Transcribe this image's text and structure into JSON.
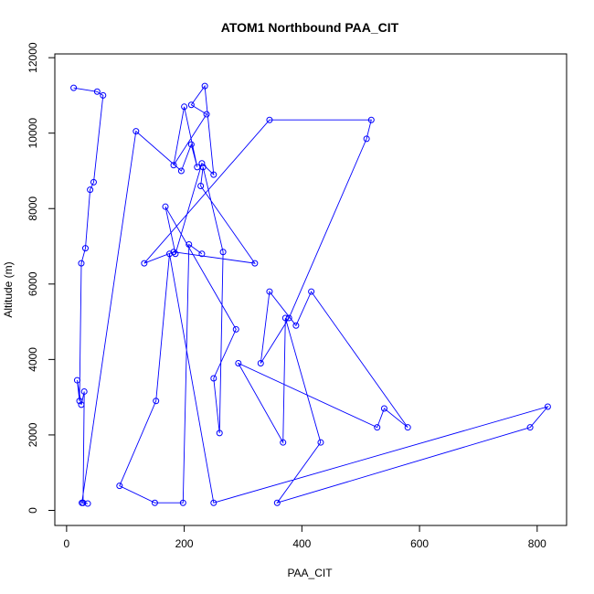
{
  "chart_data": {
    "type": "line",
    "title": "ATOM1 Northbound PAA_CIT",
    "xlabel": "PAA_CIT",
    "ylabel": "Altitude (m)",
    "xlim": [
      -20,
      850
    ],
    "ylim": [
      -400,
      12100
    ],
    "x_ticks": [
      0,
      200,
      400,
      600,
      800
    ],
    "y_ticks": [
      0,
      2000,
      4000,
      6000,
      8000,
      10000,
      12000
    ],
    "grid": false,
    "legend": "none",
    "colors": {
      "series": "#0000ff",
      "frame": "#000000"
    },
    "series": [
      {
        "x": [
          12,
          52,
          62,
          46,
          40,
          32,
          25,
          22,
          18,
          25,
          30,
          28,
          36,
          26,
          118,
          195,
          212,
          222,
          200,
          182,
          238,
          212,
          235,
          250,
          230,
          185,
          168,
          288,
          250,
          260,
          266,
          232,
          228,
          320,
          182,
          132,
          345,
          518,
          510,
          378,
          330,
          345,
          390,
          416,
          580,
          540,
          528,
          292,
          368,
          372,
          432,
          358,
          788,
          818,
          250,
          175,
          152,
          90,
          150,
          198,
          208,
          230
        ],
        "y": [
          11200,
          11100,
          11000,
          8700,
          8500,
          6950,
          6550,
          2900,
          3450,
          2800,
          3150,
          200,
          180,
          200,
          10050,
          9000,
          9700,
          9100,
          10700,
          9150,
          10500,
          10750,
          11250,
          8900,
          9200,
          6800,
          8050,
          4800,
          3500,
          2050,
          6850,
          9100,
          8600,
          6550,
          6850,
          6550,
          10350,
          10350,
          9850,
          5100,
          3900,
          5800,
          4900,
          5800,
          2200,
          2700,
          2200,
          3900,
          1800,
          5100,
          1800,
          200,
          2200,
          2750,
          200,
          6800,
          2900,
          650,
          200,
          200,
          7050,
          6800
        ]
      }
    ]
  }
}
